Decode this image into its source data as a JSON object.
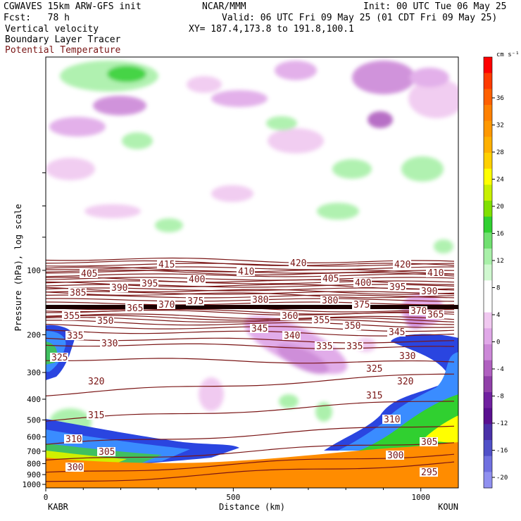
{
  "header": {
    "title_left": "CGWAVES 15km ARW-GFS init",
    "forecast": "Fcst:   78 h",
    "field1": "Vertical velocity",
    "field2": "Boundary Layer Tracer",
    "field3": "Potential Temperature",
    "org": "NCAR/MMM",
    "init": "Init: 00 UTC Tue 06 May 25",
    "valid": "Valid: 06 UTC Fri 09 May 25 (01 CDT Fri 09 May 25)",
    "xy": "XY= 187.4,173.8 to 191.8,100.1"
  },
  "colors": {
    "theta_contour": "#7a1515",
    "tracer_ground": "#ff8c00"
  },
  "chart_data": {
    "type": "cross-section",
    "xlabel": "Distance (km)",
    "ylabel": "Pressure (hPa), log scale",
    "xlim": [
      0,
      1100
    ],
    "x_ticks": [
      0,
      500,
      1000
    ],
    "x_endpoints": [
      "KABR",
      "KOUN"
    ],
    "y_ticks": [
      100,
      200,
      300,
      400,
      500,
      600,
      700,
      800,
      900,
      1000
    ],
    "y_scale": "log",
    "colorbar": {
      "unit": "cm s⁻¹",
      "labels": [
        36,
        32,
        28,
        24,
        20,
        16,
        12,
        8,
        4,
        0,
        -4,
        -8,
        -12,
        -16,
        -20
      ],
      "colors": [
        "#ff0000",
        "#ff3a00",
        "#ff6000",
        "#ff8000",
        "#ff9800",
        "#ffb000",
        "#ffd000",
        "#ffff00",
        "#c8f000",
        "#80e000",
        "#30d030",
        "#70e070",
        "#a8f0a8",
        "#d0f8d0",
        "#ffffff",
        "#ffffff",
        "#f0c8f0",
        "#e0a8e8",
        "#cc88d8",
        "#b060c0",
        "#9040a8",
        "#7020a0",
        "#5a1090",
        "#4a30a8",
        "#5050c8",
        "#7070e0",
        "#9090f0"
      ]
    },
    "theta_contours": [
      {
        "label": "415",
        "y": 90,
        "pos": [
          [
            225,
            380
          ]
        ]
      },
      {
        "label": "420",
        "y": 93,
        "pos": [
          [
            412,
            378
          ],
          [
            560,
            380
          ]
        ]
      },
      {
        "label": "405",
        "y": 103,
        "pos": [
          [
            115,
            393
          ],
          [
            458,
            400
          ]
        ]
      },
      {
        "label": "410",
        "y": 100,
        "pos": [
          [
            338,
            390
          ],
          [
            607,
            392
          ]
        ]
      },
      {
        "label": "400",
        "y": 112,
        "pos": [
          [
            268,
            401
          ],
          [
            504,
            406
          ]
        ]
      },
      {
        "label": "395",
        "y": 118,
        "pos": [
          [
            201,
            407
          ],
          [
            553,
            412
          ]
        ]
      },
      {
        "label": "390",
        "y": 125,
        "pos": [
          [
            158,
            413
          ],
          [
            598,
            418
          ]
        ]
      },
      {
        "label": "385",
        "y": 130,
        "pos": [
          [
            99,
            420
          ]
        ]
      },
      {
        "label": "380",
        "y": 152,
        "pos": [
          [
            358,
            430
          ],
          [
            457,
            431
          ]
        ]
      },
      {
        "label": "375",
        "y": 156,
        "pos": [
          [
            266,
            432
          ],
          [
            502,
            437
          ]
        ]
      },
      {
        "label": "370",
        "y": 158,
        "pos": [
          [
            225,
            437
          ],
          [
            583,
            446
          ]
        ]
      },
      {
        "label": "365",
        "y": 165,
        "pos": [
          [
            180,
            442
          ],
          [
            607,
            451
          ]
        ]
      },
      {
        "label": "360",
        "y": 168,
        "pos": [
          [
            400,
            453
          ]
        ]
      },
      {
        "label": "355",
        "y": 172,
        "pos": [
          [
            90,
            453
          ],
          [
            445,
            459
          ]
        ]
      },
      {
        "label": "350",
        "y": 178,
        "pos": [
          [
            138,
            460
          ],
          [
            489,
            467
          ]
        ]
      },
      {
        "label": "345",
        "y": 186,
        "pos": [
          [
            357,
            471
          ],
          [
            552,
            476
          ]
        ]
      },
      {
        "label": "340",
        "y": 196,
        "pos": [
          [
            403,
            481
          ]
        ]
      },
      {
        "label": "335",
        "y": 212,
        "pos": [
          [
            95,
            481
          ],
          [
            449,
            496
          ],
          [
            492,
            496
          ]
        ]
      },
      {
        "label": "330",
        "y": 226,
        "pos": [
          [
            144,
            492
          ],
          [
            567,
            510
          ]
        ]
      },
      {
        "label": "325",
        "y": 265,
        "pos": [
          [
            73,
            512
          ],
          [
            520,
            528
          ]
        ]
      },
      {
        "label": "320",
        "y": 340,
        "pos": [
          [
            125,
            546
          ],
          [
            564,
            546
          ]
        ]
      },
      {
        "label": "315",
        "y": 450,
        "pos": [
          [
            125,
            594
          ],
          [
            520,
            566
          ]
        ]
      },
      {
        "label": "310",
        "y": 585,
        "pos": [
          [
            93,
            628
          ],
          [
            545,
            600
          ]
        ]
      },
      {
        "label": "305",
        "y": 700,
        "pos": [
          [
            140,
            646
          ],
          [
            598,
            632
          ]
        ]
      },
      {
        "label": "300",
        "y": 800,
        "pos": [
          [
            95,
            668
          ],
          [
            550,
            651
          ]
        ]
      },
      {
        "label": "295",
        "y": 880,
        "pos": [
          [
            598,
            675
          ]
        ]
      }
    ]
  }
}
